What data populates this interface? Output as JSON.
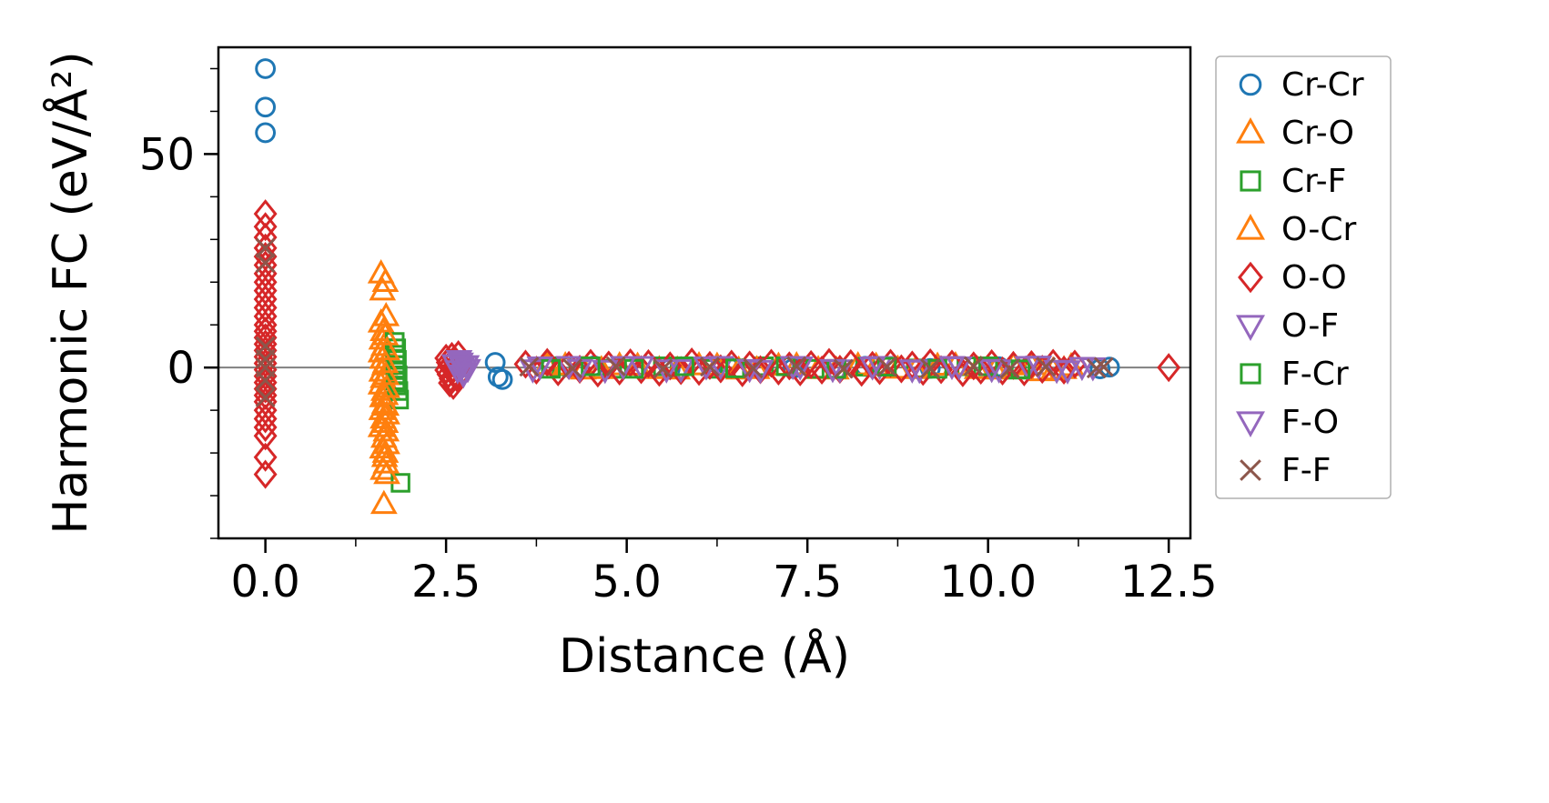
{
  "chart_data": {
    "type": "scatter",
    "title": "",
    "xlabel": "Distance (Å)",
    "ylabel": "Harmonic FC (eV/Å²)",
    "xlim": [
      -0.65,
      12.8
    ],
    "ylim": [
      -40,
      75
    ],
    "xticks": [
      {
        "v": 0.0,
        "label": "0.0"
      },
      {
        "v": 2.5,
        "label": "2.5"
      },
      {
        "v": 5.0,
        "label": "5.0"
      },
      {
        "v": 7.5,
        "label": "7.5"
      },
      {
        "v": 10.0,
        "label": "10.0"
      },
      {
        "v": 12.5,
        "label": "12.5"
      }
    ],
    "yticks": [
      {
        "v": 0,
        "label": "0"
      },
      {
        "v": 50,
        "label": "50"
      }
    ],
    "xminor": [
      1.25,
      3.75,
      6.25,
      8.75,
      11.25
    ],
    "yminor": [
      -40,
      -30,
      -20,
      -10,
      10,
      20,
      30,
      40,
      60,
      70
    ],
    "grid": false,
    "legend_position": "outside-right",
    "zero_line": {
      "y": 0,
      "color": "#808080"
    },
    "series": [
      {
        "name": "Cr-Cr",
        "marker": "circle",
        "color": "#1f77b4",
        "points": [
          [
            0,
            70
          ],
          [
            0,
            61
          ],
          [
            0,
            55
          ],
          [
            3.18,
            1.2
          ],
          [
            3.22,
            -2.2
          ],
          [
            3.28,
            -2.8
          ],
          [
            4.55,
            0.4
          ],
          [
            5.6,
            -0.3
          ],
          [
            6.4,
            0.3
          ],
          [
            7.3,
            -0.2
          ],
          [
            8.3,
            0.3
          ],
          [
            9.2,
            -0.2
          ],
          [
            10.15,
            0.2
          ],
          [
            11.55,
            -0.3
          ],
          [
            11.68,
            0.1
          ]
        ]
      },
      {
        "name": "Cr-O",
        "marker": "triangle-up",
        "color": "#ff7f0e",
        "points": [
          [
            1.6,
            22
          ],
          [
            1.62,
            18
          ],
          [
            1.6,
            10.5
          ],
          [
            1.63,
            8.5
          ],
          [
            1.61,
            6.5
          ],
          [
            1.64,
            5
          ],
          [
            1.6,
            3.5
          ],
          [
            1.62,
            2
          ],
          [
            1.65,
            0.5
          ],
          [
            1.61,
            -1
          ],
          [
            1.63,
            -2.5
          ],
          [
            1.6,
            -4
          ],
          [
            1.64,
            -5.5
          ],
          [
            1.62,
            -7
          ],
          [
            1.65,
            -8.5
          ],
          [
            1.61,
            -10
          ],
          [
            1.63,
            -12
          ],
          [
            1.6,
            -14
          ],
          [
            1.64,
            -16.5
          ],
          [
            1.62,
            -19
          ],
          [
            1.65,
            -21
          ],
          [
            1.63,
            -24
          ],
          [
            1.64,
            -32
          ],
          [
            3.9,
            0.6
          ],
          [
            4.4,
            -0.5
          ],
          [
            4.9,
            0.5
          ],
          [
            5.45,
            -0.4
          ],
          [
            6.0,
            0.5
          ],
          [
            6.55,
            -0.5
          ],
          [
            7.1,
            0.4
          ],
          [
            7.65,
            -0.4
          ],
          [
            8.2,
            0.5
          ],
          [
            8.75,
            -0.3
          ],
          [
            9.3,
            0.4
          ],
          [
            9.85,
            -0.4
          ],
          [
            10.35,
            0.5
          ],
          [
            10.75,
            -0.9
          ],
          [
            11.05,
            -0.4
          ]
        ]
      },
      {
        "name": "Cr-F",
        "marker": "square",
        "color": "#2ca02c",
        "points": [
          [
            1.79,
            6
          ],
          [
            1.81,
            4.5
          ],
          [
            1.8,
            3
          ],
          [
            1.82,
            1.8
          ],
          [
            1.8,
            0.6
          ],
          [
            1.81,
            -0.6
          ],
          [
            1.83,
            -1.8
          ],
          [
            1.8,
            -3
          ],
          [
            1.82,
            -4.2
          ],
          [
            1.84,
            -5.5
          ],
          [
            1.85,
            -7.5
          ],
          [
            1.87,
            -27
          ],
          [
            4.1,
            0.3
          ],
          [
            4.8,
            -0.3
          ],
          [
            5.5,
            0.3
          ],
          [
            6.2,
            -0.3
          ],
          [
            6.9,
            0.3
          ],
          [
            7.6,
            -0.3
          ],
          [
            8.3,
            0.2
          ],
          [
            9.0,
            -0.2
          ],
          [
            9.7,
            0.3
          ],
          [
            10.4,
            -0.5
          ]
        ]
      },
      {
        "name": "O-Cr",
        "marker": "triangle-up",
        "color": "#ff7f0e",
        "points": [
          [
            1.66,
            20
          ],
          [
            1.67,
            12
          ],
          [
            1.66,
            7.5
          ],
          [
            1.68,
            4
          ],
          [
            1.66,
            1
          ],
          [
            1.67,
            -1.8
          ],
          [
            1.68,
            -4.8
          ],
          [
            1.66,
            -6.5
          ],
          [
            1.67,
            -9
          ],
          [
            1.68,
            -11
          ],
          [
            1.66,
            -13
          ],
          [
            1.67,
            -15
          ],
          [
            1.68,
            -18
          ],
          [
            1.66,
            -20
          ],
          [
            1.67,
            -22.5
          ],
          [
            1.68,
            -25
          ],
          [
            4.15,
            0.5
          ],
          [
            4.65,
            -0.4
          ],
          [
            5.15,
            0.4
          ],
          [
            5.7,
            -0.5
          ],
          [
            6.25,
            0.4
          ],
          [
            6.8,
            -0.4
          ],
          [
            7.35,
            0.5
          ],
          [
            7.9,
            -0.5
          ],
          [
            8.45,
            0.4
          ],
          [
            9.0,
            -0.4
          ],
          [
            9.55,
            0.5
          ],
          [
            10.1,
            -0.5
          ],
          [
            10.6,
            0.6
          ],
          [
            10.9,
            -0.7
          ],
          [
            11.15,
            0.3
          ]
        ]
      },
      {
        "name": "O-O",
        "marker": "diamond",
        "color": "#d62728",
        "points": [
          [
            0,
            36
          ],
          [
            0,
            33
          ],
          [
            0,
            30.5
          ],
          [
            0,
            28
          ],
          [
            0,
            26
          ],
          [
            0,
            24
          ],
          [
            0,
            22
          ],
          [
            0,
            20
          ],
          [
            0,
            18
          ],
          [
            0,
            16
          ],
          [
            0,
            14
          ],
          [
            0,
            12
          ],
          [
            0,
            10
          ],
          [
            0,
            8.5
          ],
          [
            0,
            7
          ],
          [
            0,
            5.5
          ],
          [
            0,
            4
          ],
          [
            0,
            2.5
          ],
          [
            0,
            1
          ],
          [
            0,
            -0.5
          ],
          [
            0,
            -2
          ],
          [
            0,
            -3.5
          ],
          [
            0,
            -5
          ],
          [
            0,
            -6.5
          ],
          [
            0,
            -8
          ],
          [
            0,
            -10
          ],
          [
            0,
            -12
          ],
          [
            0,
            -14
          ],
          [
            0,
            -16
          ],
          [
            0,
            -21
          ],
          [
            0,
            -25
          ],
          [
            2.5,
            2.2
          ],
          [
            2.52,
            1.2
          ],
          [
            2.54,
            0.4
          ],
          [
            2.5,
            -0.6
          ],
          [
            2.53,
            -1.6
          ],
          [
            2.56,
            -2.6
          ],
          [
            2.58,
            2.6
          ],
          [
            2.6,
            1.6
          ],
          [
            2.62,
            0.6
          ],
          [
            2.6,
            -0.4
          ],
          [
            2.63,
            -1.4
          ],
          [
            2.65,
            -2.4
          ],
          [
            2.55,
            -3.6
          ],
          [
            2.67,
            3.0
          ],
          [
            2.7,
            0.2
          ],
          [
            2.72,
            -1.0
          ],
          [
            2.6,
            -4.2
          ],
          [
            3.6,
            0.8
          ],
          [
            3.75,
            -0.6
          ],
          [
            3.9,
            1.2
          ],
          [
            4.05,
            -1.0
          ],
          [
            4.2,
            0.5
          ],
          [
            4.35,
            -0.4
          ],
          [
            4.5,
            1.0
          ],
          [
            4.6,
            -1.3
          ],
          [
            4.75,
            0.6
          ],
          [
            4.9,
            -0.8
          ],
          [
            5.05,
            1.1
          ],
          [
            5.2,
            -0.5
          ],
          [
            5.3,
            0.9
          ],
          [
            5.45,
            -1.1
          ],
          [
            5.6,
            0.4
          ],
          [
            5.75,
            -0.7
          ],
          [
            5.9,
            1.3
          ],
          [
            6.0,
            -0.9
          ],
          [
            6.15,
            0.5
          ],
          [
            6.3,
            -0.3
          ],
          [
            6.45,
            0.8
          ],
          [
            6.6,
            -1.2
          ],
          [
            6.7,
            0.6
          ],
          [
            6.85,
            -0.5
          ],
          [
            7.0,
            1.0
          ],
          [
            7.1,
            -0.8
          ],
          [
            7.25,
            0.4
          ],
          [
            7.4,
            -1.0
          ],
          [
            7.55,
            0.7
          ],
          [
            7.7,
            -0.6
          ],
          [
            7.8,
            1.2
          ],
          [
            7.95,
            -0.4
          ],
          [
            8.1,
            0.9
          ],
          [
            8.25,
            -1.1
          ],
          [
            8.4,
            0.5
          ],
          [
            8.5,
            -0.7
          ],
          [
            8.65,
            1.0
          ],
          [
            8.8,
            -0.3
          ],
          [
            8.95,
            0.6
          ],
          [
            9.1,
            -0.9
          ],
          [
            9.2,
            1.1
          ],
          [
            9.35,
            -0.5
          ],
          [
            9.5,
            0.8
          ],
          [
            9.65,
            -1.2
          ],
          [
            9.8,
            0.4
          ],
          [
            9.9,
            -0.6
          ],
          [
            10.05,
            0.9
          ],
          [
            10.2,
            -0.8
          ],
          [
            10.35,
            0.5
          ],
          [
            10.5,
            -1.0
          ],
          [
            10.6,
            0.7
          ],
          [
            10.75,
            -0.4
          ],
          [
            10.9,
            1.0
          ],
          [
            11.05,
            -0.6
          ],
          [
            11.2,
            0.8
          ],
          [
            12.5,
            0
          ]
        ]
      },
      {
        "name": "O-F",
        "marker": "triangle-down",
        "color": "#9467bd",
        "points": [
          [
            2.62,
            0.8
          ],
          [
            2.66,
            -0.6
          ],
          [
            2.7,
            1.2
          ],
          [
            2.72,
            0.2
          ],
          [
            2.75,
            -1.0
          ],
          [
            2.78,
            0.6
          ],
          [
            2.8,
            -0.3
          ],
          [
            2.68,
            1.8
          ],
          [
            2.74,
            -1.6
          ],
          [
            3.7,
            -0.4
          ],
          [
            4.2,
            0.4
          ],
          [
            4.7,
            -0.5
          ],
          [
            5.2,
            0.4
          ],
          [
            5.75,
            -0.3
          ],
          [
            6.3,
            0.4
          ],
          [
            6.85,
            -0.5
          ],
          [
            7.4,
            0.3
          ],
          [
            7.95,
            -0.4
          ],
          [
            8.5,
            0.4
          ],
          [
            9.05,
            -0.5
          ],
          [
            9.6,
            0.3
          ],
          [
            10.15,
            -0.4
          ],
          [
            10.55,
            0.4
          ],
          [
            10.95,
            -0.5
          ],
          [
            11.3,
            0.2
          ]
        ]
      },
      {
        "name": "F-Cr",
        "marker": "square",
        "color": "#2ca02c",
        "points": [
          [
            3.95,
            -0.3
          ],
          [
            4.5,
            0.3
          ],
          [
            5.1,
            -0.3
          ],
          [
            5.8,
            0.3
          ],
          [
            6.5,
            -0.2
          ],
          [
            7.2,
            0.3
          ],
          [
            7.9,
            -0.3
          ],
          [
            8.6,
            0.2
          ],
          [
            9.3,
            -0.3
          ],
          [
            10.0,
            0.3
          ],
          [
            10.45,
            -0.4
          ]
        ]
      },
      {
        "name": "F-O",
        "marker": "triangle-down",
        "color": "#9467bd",
        "points": [
          [
            3.8,
            0.3
          ],
          [
            4.35,
            -0.3
          ],
          [
            4.95,
            0.4
          ],
          [
            5.55,
            -0.4
          ],
          [
            6.1,
            0.3
          ],
          [
            6.7,
            -0.3
          ],
          [
            7.3,
            0.4
          ],
          [
            7.85,
            -0.3
          ],
          [
            8.4,
            0.3
          ],
          [
            8.95,
            -0.4
          ],
          [
            9.5,
            0.4
          ],
          [
            10.05,
            -0.3
          ],
          [
            10.7,
            0.5
          ],
          [
            11.1,
            -0.6
          ],
          [
            11.45,
            0.1
          ]
        ]
      },
      {
        "name": "F-F",
        "marker": "x",
        "color": "#8c564b",
        "points": [
          [
            0,
            28
          ],
          [
            0,
            24.5
          ],
          [
            0,
            5
          ],
          [
            0,
            2
          ],
          [
            0,
            0
          ],
          [
            0,
            -3
          ],
          [
            0,
            -7
          ],
          [
            3.65,
            0.2
          ],
          [
            4.25,
            -0.2
          ],
          [
            4.85,
            0.3
          ],
          [
            5.5,
            -0.3
          ],
          [
            6.15,
            0.2
          ],
          [
            6.75,
            -0.2
          ],
          [
            7.35,
            0.3
          ],
          [
            8.0,
            -0.3
          ],
          [
            8.6,
            0.2
          ],
          [
            9.2,
            -0.2
          ],
          [
            9.8,
            0.3
          ],
          [
            10.3,
            -0.3
          ],
          [
            10.8,
            0.2
          ],
          [
            11.5,
            -0.2
          ],
          [
            11.6,
            0.15
          ]
        ]
      }
    ]
  }
}
